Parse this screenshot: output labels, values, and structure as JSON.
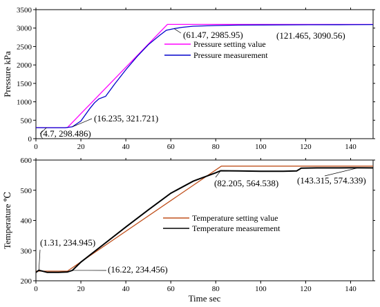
{
  "chart_data": [
    {
      "type": "line",
      "xlabel": "",
      "ylabel": "Pressure kPa",
      "xlim": [
        0,
        150
      ],
      "ylim": [
        0,
        3500
      ],
      "x_ticks": [
        0,
        20,
        40,
        60,
        80,
        100,
        120,
        140
      ],
      "y_ticks": [
        0,
        500,
        1000,
        1500,
        2000,
        2500,
        3000,
        3500
      ],
      "grid": false,
      "legend_position": "center-right",
      "series": [
        {
          "name": "Pressure setting value",
          "color": "#ff00ff",
          "x": [
            0,
            14,
            58.5,
            150
          ],
          "y": [
            300,
            300,
            3100,
            3100
          ]
        },
        {
          "name": "Pressure measurement",
          "color": "#0000cc",
          "x": [
            0,
            4.7,
            13,
            16.235,
            20,
            24,
            26,
            28,
            31,
            35,
            40,
            45,
            50,
            55,
            58,
            61.47,
            65,
            70,
            80,
            90,
            100,
            121.465,
            135,
            150
          ],
          "y": [
            300,
            298.486,
            298,
            321.721,
            480,
            820,
            970,
            1080,
            1150,
            1480,
            1870,
            2230,
            2550,
            2800,
            2940,
            2985.95,
            3020,
            3050,
            3070,
            3080,
            3085,
            3090.56,
            3092,
            3095
          ]
        }
      ],
      "annotations": [
        {
          "text": "(121.465, 3090.56)",
          "x": 121.465,
          "y": 3090.56
        },
        {
          "text": "(61.47, 2985.95)",
          "x": 61.47,
          "y": 2985.95
        },
        {
          "text": "(16.235, 321.721)",
          "x": 16.235,
          "y": 321.721
        },
        {
          "text": "(4.7, 298.486)",
          "x": 4.7,
          "y": 298.486
        }
      ]
    },
    {
      "type": "line",
      "xlabel": "Time sec",
      "ylabel": "Temperature ℃",
      "xlim": [
        0,
        150
      ],
      "ylim": [
        200,
        600
      ],
      "x_ticks": [
        0,
        20,
        40,
        60,
        80,
        100,
        120,
        140
      ],
      "y_ticks": [
        200,
        300,
        400,
        500,
        600
      ],
      "grid": false,
      "legend_position": "center",
      "series": [
        {
          "name": "Temperature setting value",
          "color": "#c0501c",
          "x": [
            0,
            14,
            82.5,
            150
          ],
          "y": [
            232,
            232,
            580,
            580
          ]
        },
        {
          "name": "Temperature measurement",
          "color": "#000000",
          "x": [
            0,
            1.31,
            5,
            10,
            14,
            16.22,
            20,
            30,
            40,
            50,
            60,
            70,
            80,
            82.205,
            90,
            100,
            110,
            116,
            118,
            125,
            135,
            143.315,
            150
          ],
          "y": [
            228,
            234.945,
            228,
            228,
            229,
            234.456,
            262,
            320,
            378,
            435,
            490,
            530,
            558,
            564.538,
            564,
            563,
            563,
            564,
            573,
            574,
            574,
            574.339,
            574
          ]
        }
      ],
      "annotations": [
        {
          "text": "(82.205, 564.538)",
          "x": 82.205,
          "y": 564.538
        },
        {
          "text": "(143.315, 574.339)",
          "x": 143.315,
          "y": 574.339
        },
        {
          "text": "(1.31, 234.945)",
          "x": 1.31,
          "y": 234.945
        },
        {
          "text": "(16.22, 234.456)",
          "x": 16.22,
          "y": 234.456
        }
      ]
    }
  ]
}
